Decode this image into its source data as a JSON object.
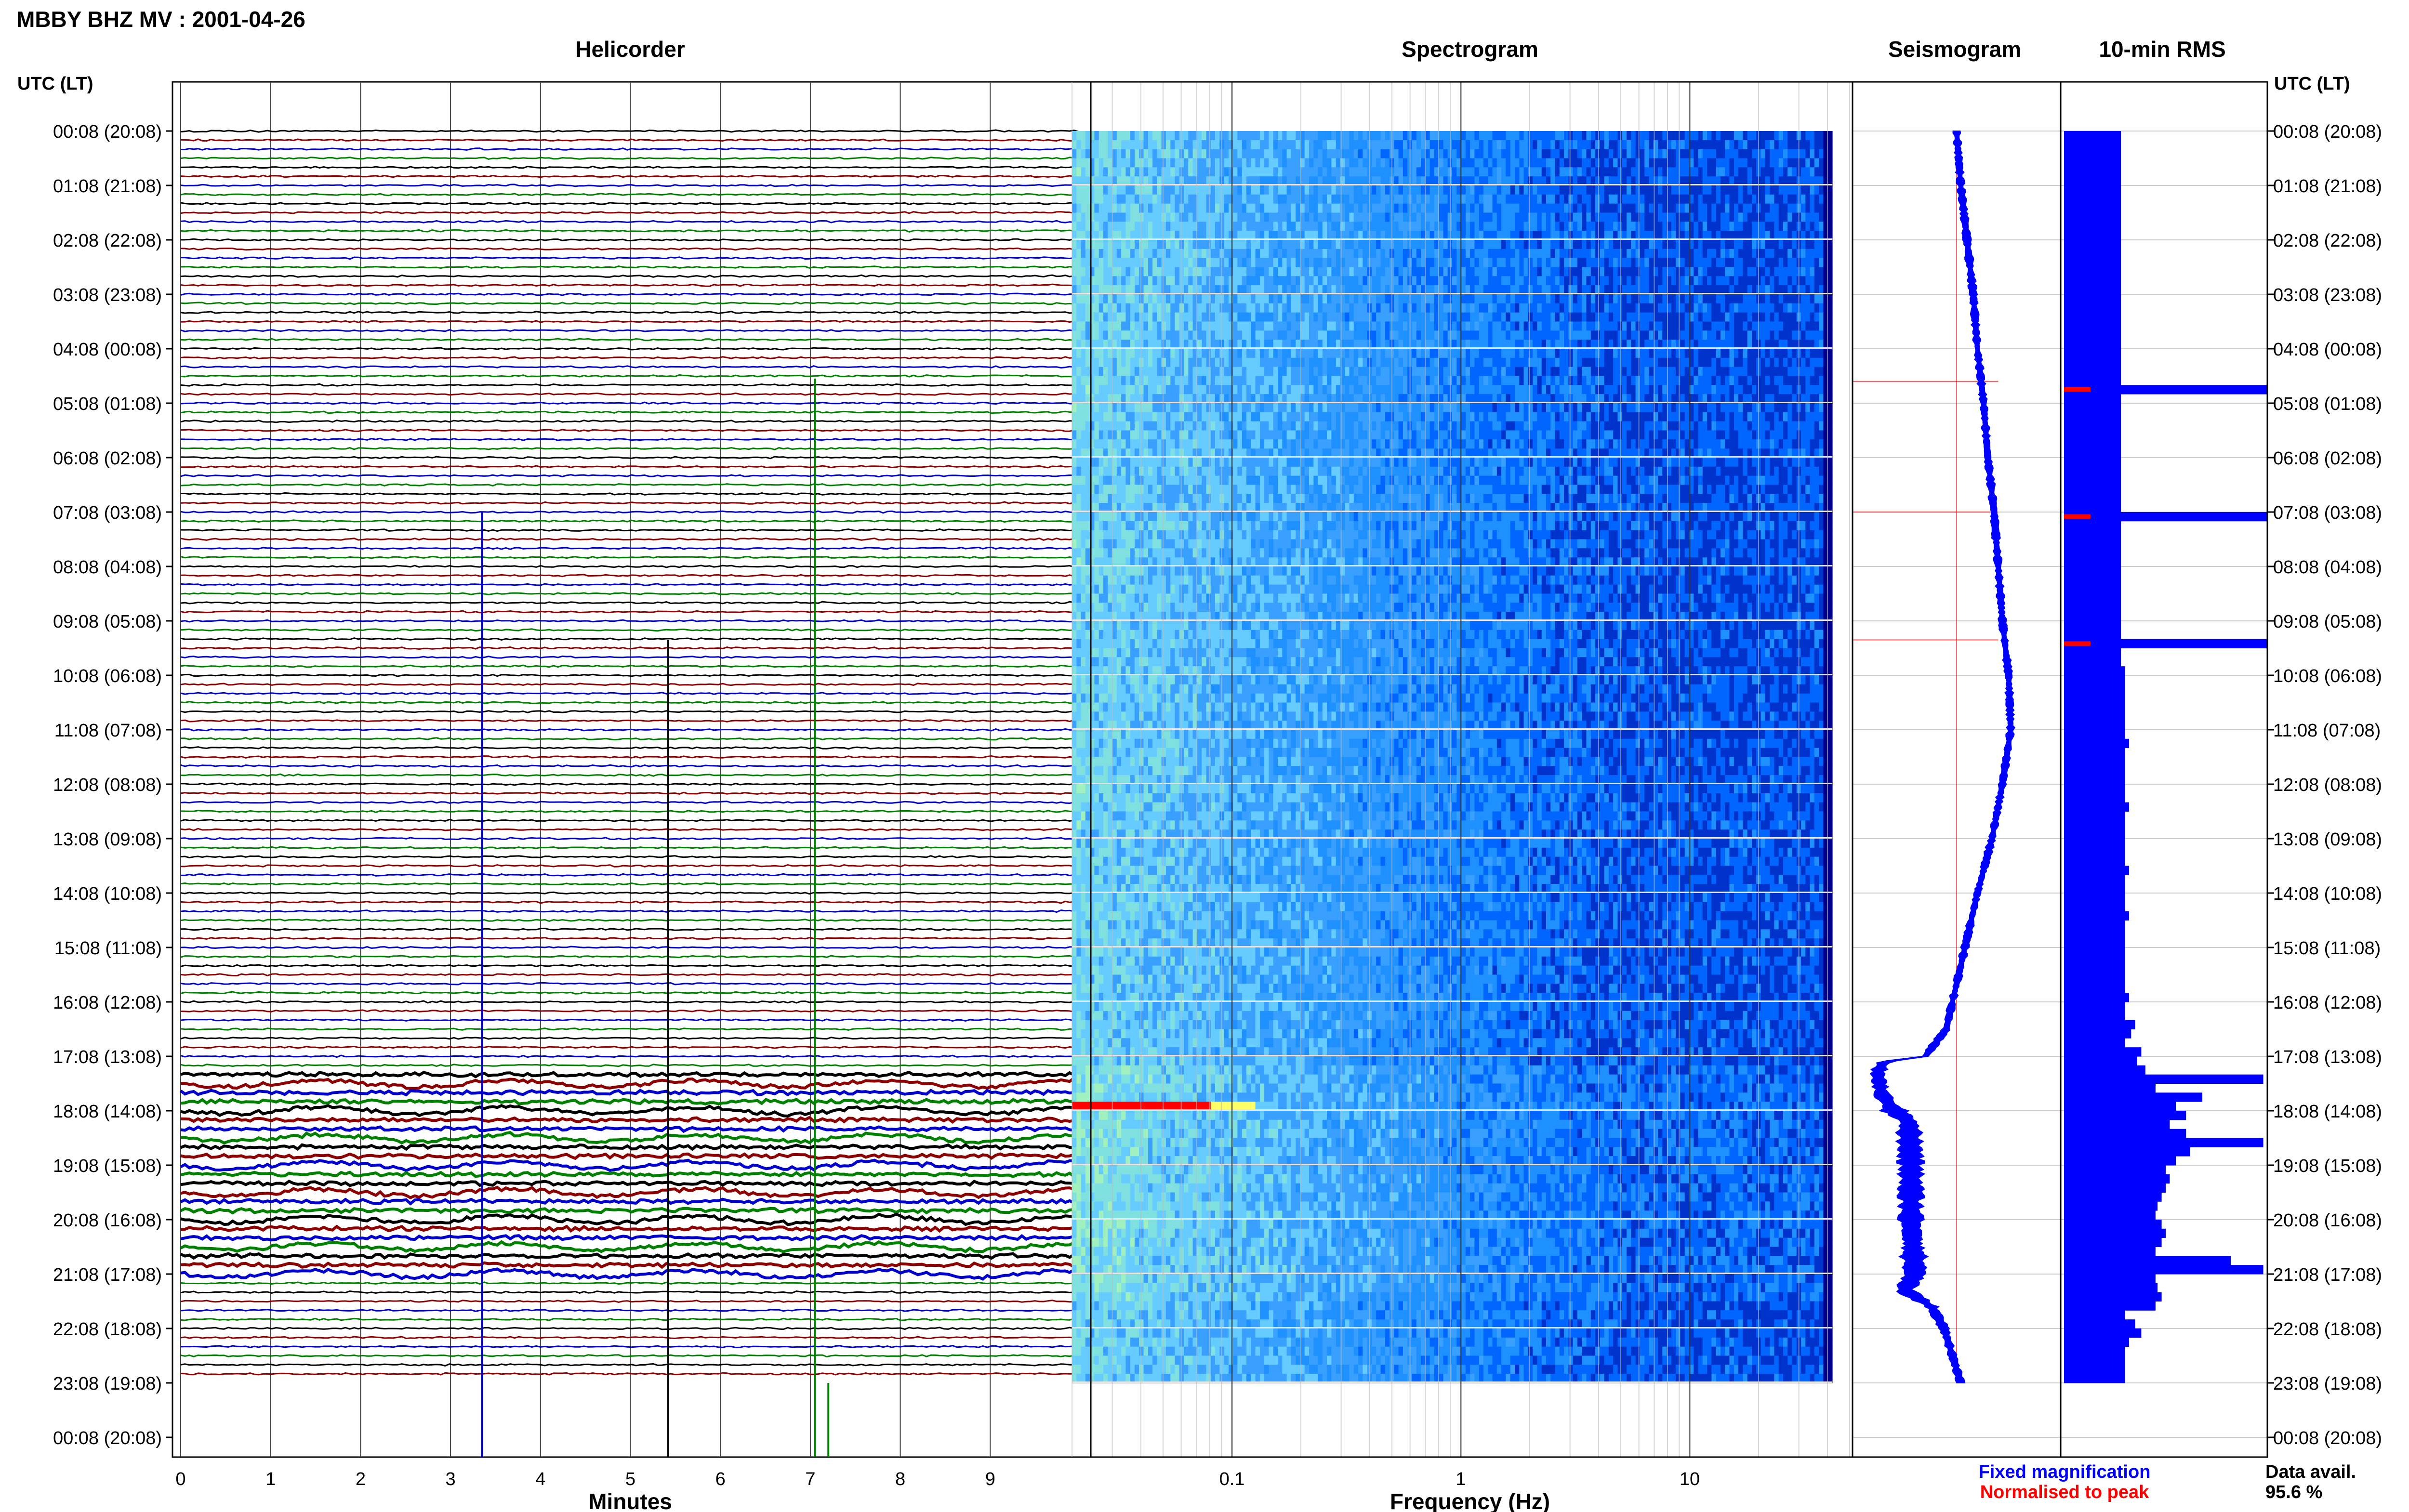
{
  "header": {
    "station_title": "MBBY BHZ MV : 2001-04-26"
  },
  "panels": {
    "helicorder": "Helicorder",
    "spectrogram": "Spectrogram",
    "seismogram": "Seismogram",
    "rms": "10-min RMS"
  },
  "axis": {
    "time_header": "UTC (LT)",
    "minutes_label": "Minutes",
    "frequency_label": "Frequency (Hz)"
  },
  "legend": {
    "fixed": "Fixed magnification",
    "normalised": "Normalised to peak",
    "fixed_color": "#0000ff",
    "normalised_color": "#ff0000"
  },
  "availability": {
    "label": "Data avail.",
    "value": "95.6 %"
  },
  "colors": {
    "trace_cycle": [
      "#000000",
      "#8b0000",
      "#0000cd",
      "#008000"
    ],
    "rms_bar": "#0000ff",
    "rms_peak": "#ff0000",
    "seis_ref": "#ff0000"
  },
  "chart_data": [
    {
      "type": "line",
      "title": "Helicorder",
      "xlabel": "Minutes",
      "x_ticks": [
        "0",
        "1",
        "2",
        "3",
        "4",
        "5",
        "6",
        "7",
        "8",
        "9"
      ],
      "xlim": [
        0,
        10
      ],
      "time_ticks": [
        "00:08 (20:08)",
        "01:08 (21:08)",
        "02:08 (22:08)",
        "03:08 (23:08)",
        "04:08 (00:08)",
        "05:08 (01:08)",
        "06:08 (02:08)",
        "07:08 (03:08)",
        "08:08 (04:08)",
        "09:08 (05:08)",
        "10:08 (06:08)",
        "11:08 (07:08)",
        "12:08 (08:08)",
        "13:08 (09:08)",
        "14:08 (10:08)",
        "15:08 (11:08)",
        "16:08 (12:08)",
        "17:08 (13:08)",
        "18:08 (14:08)",
        "19:08 (15:08)",
        "20:08 (16:08)",
        "21:08 (17:08)",
        "22:08 (18:08)",
        "23:08 (19:08)",
        "00:08 (20:08)"
      ],
      "traces_per_hour": 6,
      "trace_count": 138,
      "spikes": [
        {
          "minute": 3.35,
          "start_hour": 7.0,
          "end_hour": 24.4,
          "color": "#0000cd"
        },
        {
          "minute": 5.42,
          "start_hour": 9.35,
          "end_hour": 24.4,
          "color": "#000000"
        },
        {
          "minute": 7.05,
          "start_hour": 4.55,
          "end_hour": 24.4,
          "color": "#008000"
        },
        {
          "minute": 7.2,
          "start_hour": 23.0,
          "end_hour": 24.4,
          "color": "#008000"
        }
      ],
      "high_amplitude_hours": [
        17.3,
        21.0
      ]
    },
    {
      "type": "heatmap",
      "title": "Spectrogram",
      "xlabel": "Frequency (Hz)",
      "x_scale": "log",
      "xlim": [
        0.02,
        50
      ],
      "x_tick_labels": [
        "0.1",
        "1",
        "10"
      ],
      "x_tick_values": [
        0.1,
        1,
        10
      ],
      "rows_hours": [
        0,
        23
      ]
    },
    {
      "type": "line",
      "title": "Seismogram",
      "hours": [
        0,
        1,
        2,
        3,
        4,
        5,
        6,
        7,
        8,
        9,
        10,
        11,
        12,
        13,
        14,
        15,
        16,
        16.5,
        17,
        17.1,
        17.3,
        17.7,
        18,
        18.2,
        19,
        20,
        21,
        21.3,
        21.6,
        22,
        23
      ],
      "values": [
        0.5,
        0.52,
        0.55,
        0.58,
        0.6,
        0.63,
        0.65,
        0.68,
        0.7,
        0.72,
        0.75,
        0.76,
        0.72,
        0.67,
        0.6,
        0.54,
        0.48,
        0.45,
        0.35,
        0.15,
        0.12,
        0.14,
        0.2,
        0.27,
        0.28,
        0.28,
        0.3,
        0.25,
        0.38,
        0.44,
        0.52
      ],
      "width": [
        0.03,
        0.03,
        0.03,
        0.03,
        0.03,
        0.03,
        0.03,
        0.03,
        0.03,
        0.03,
        0.03,
        0.03,
        0.03,
        0.03,
        0.03,
        0.03,
        0.03,
        0.03,
        0.04,
        0.05,
        0.06,
        0.06,
        0.1,
        0.1,
        0.1,
        0.1,
        0.1,
        0.08,
        0.05,
        0.04,
        0.03
      ],
      "ref_hours": [
        4.6,
        7.0,
        9.35
      ],
      "ref_line_value": 0.5
    },
    {
      "type": "bar",
      "title": "10-min RMS",
      "values": [
        0.28,
        0.28,
        0.28,
        0.28,
        0.28,
        0.28,
        0.28,
        0.28,
        0.28,
        0.28,
        0.28,
        0.28,
        0.28,
        0.28,
        0.28,
        0.28,
        0.28,
        0.28,
        0.28,
        0.28,
        0.28,
        0.28,
        0.28,
        0.28,
        0.28,
        0.28,
        0.28,
        0.28,
        1.0,
        0.28,
        0.28,
        0.28,
        0.28,
        0.28,
        0.28,
        0.28,
        0.28,
        0.28,
        0.28,
        0.28,
        0.28,
        0.28,
        1.0,
        0.28,
        0.28,
        0.28,
        0.28,
        0.28,
        0.28,
        0.28,
        0.28,
        0.28,
        0.28,
        0.28,
        0.28,
        0.28,
        1.0,
        0.28,
        0.28,
        0.3,
        0.3,
        0.3,
        0.3,
        0.3,
        0.3,
        0.3,
        0.3,
        0.32,
        0.3,
        0.3,
        0.3,
        0.3,
        0.3,
        0.3,
        0.32,
        0.3,
        0.3,
        0.3,
        0.3,
        0.3,
        0.3,
        0.32,
        0.3,
        0.3,
        0.3,
        0.3,
        0.32,
        0.3,
        0.3,
        0.3,
        0.3,
        0.3,
        0.3,
        0.3,
        0.3,
        0.32,
        0.3,
        0.3,
        0.35,
        0.33,
        0.3,
        0.38,
        0.36,
        0.4,
        0.98,
        0.45,
        0.68,
        0.55,
        0.6,
        0.52,
        0.6,
        0.98,
        0.62,
        0.55,
        0.5,
        0.52,
        0.5,
        0.48,
        0.46,
        0.45,
        0.48,
        0.5,
        0.48,
        0.45,
        0.82,
        0.98,
        0.45,
        0.46,
        0.48,
        0.45,
        0.3,
        0.35,
        0.38,
        0.32,
        0.3,
        0.3,
        0.3,
        0.3
      ],
      "peak_bins": [
        28,
        42,
        56
      ],
      "xlim": [
        0,
        1
      ]
    }
  ]
}
